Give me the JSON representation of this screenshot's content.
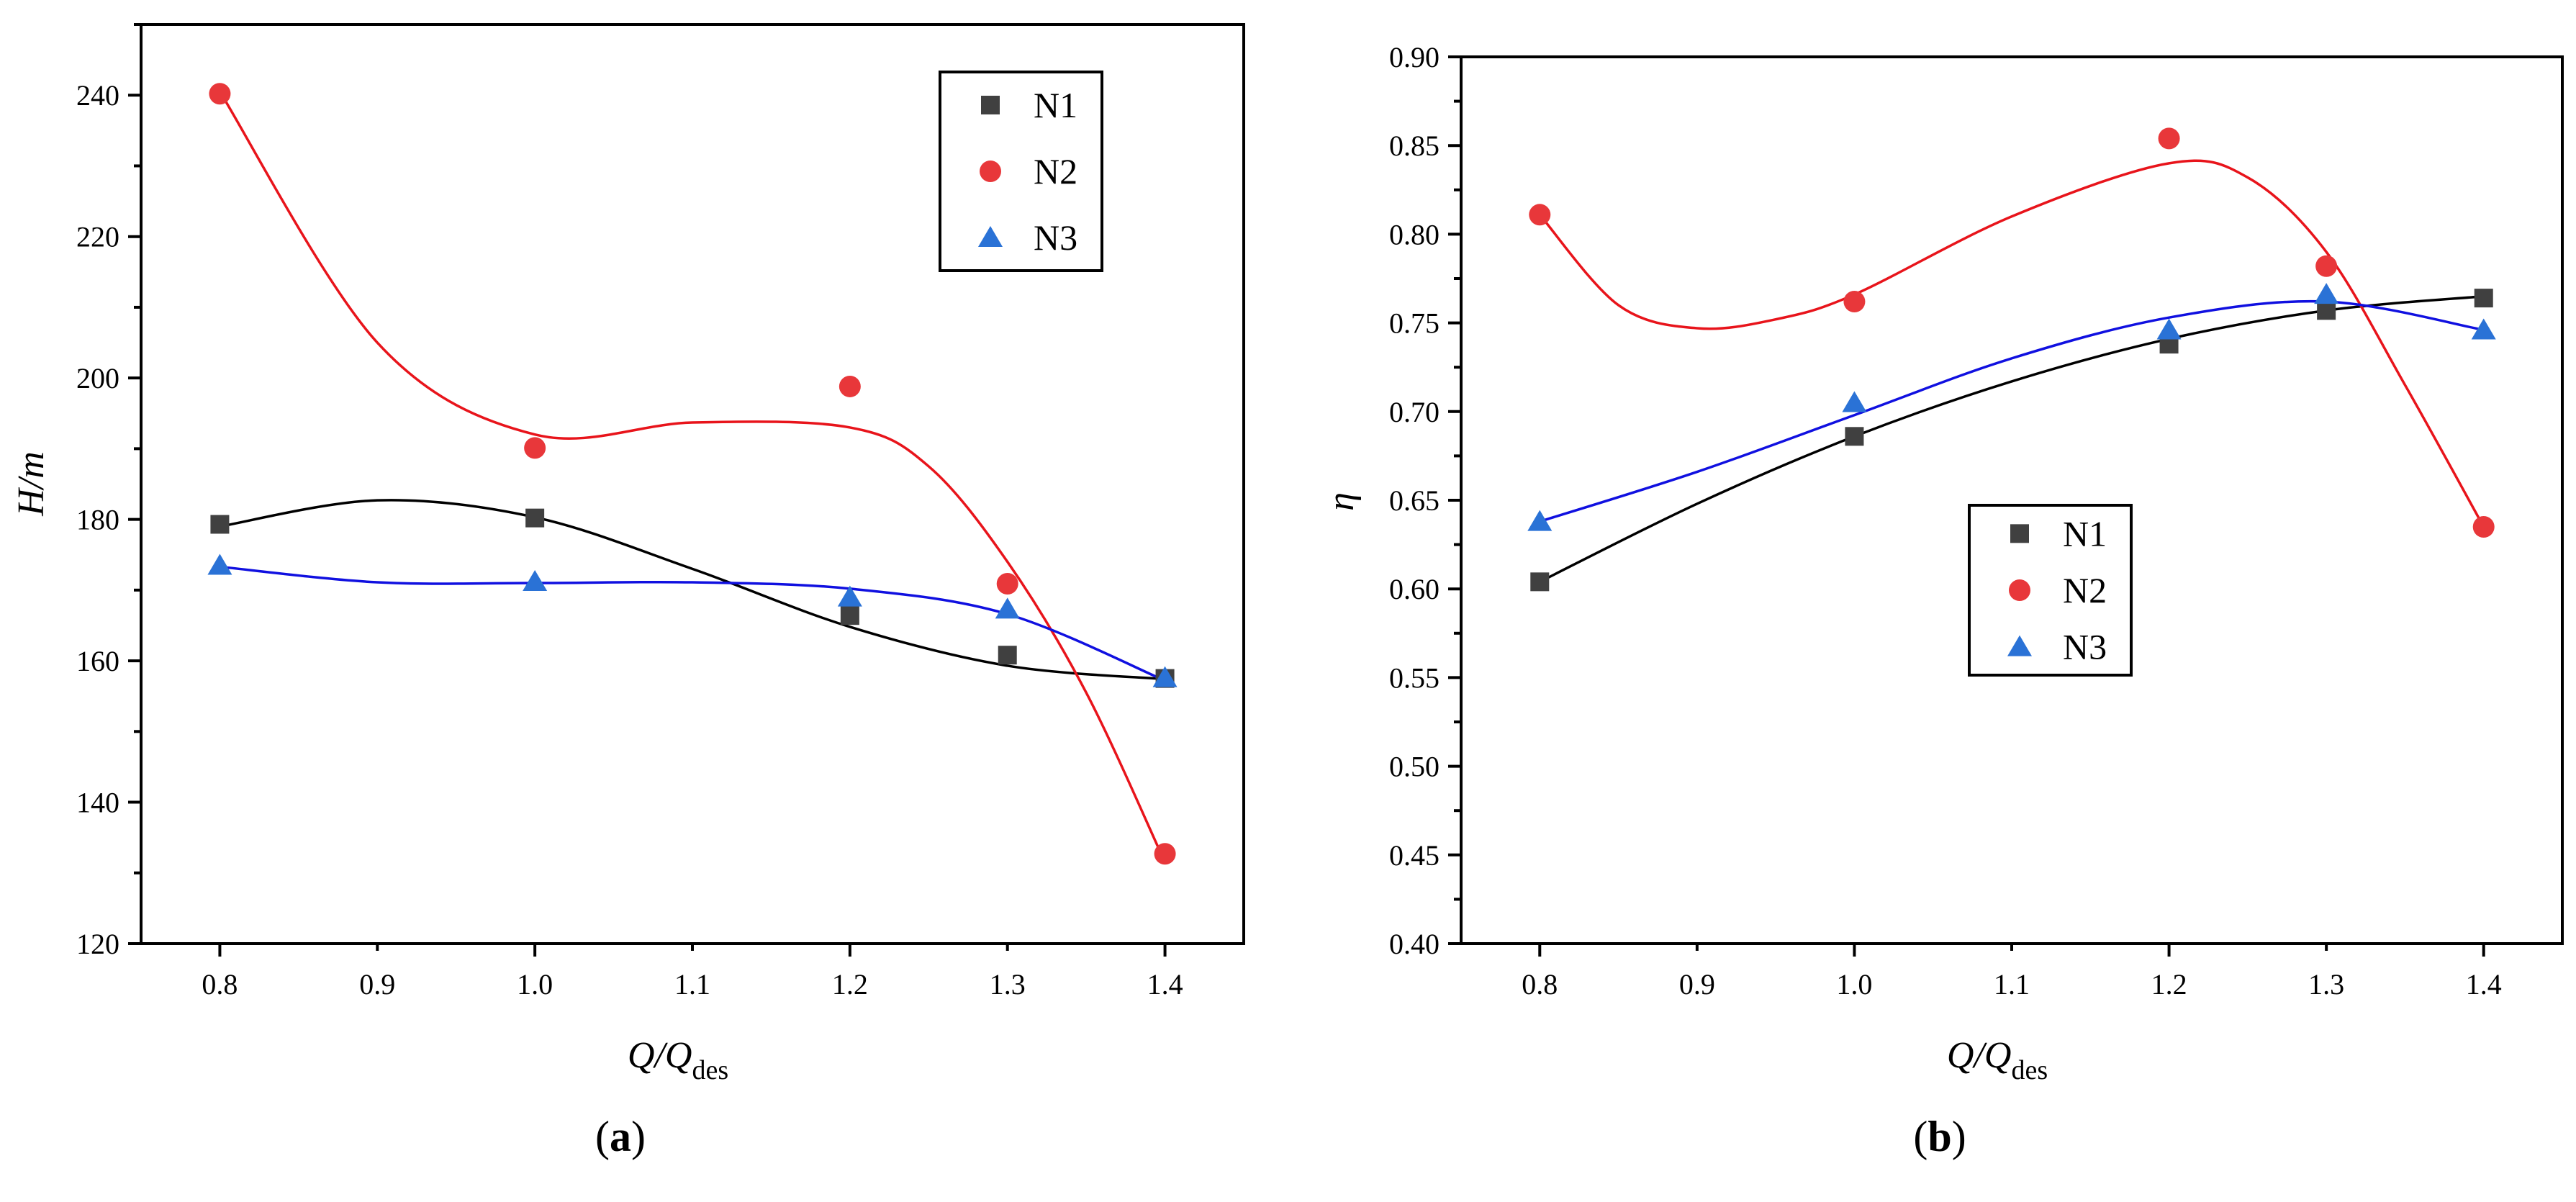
{
  "chart_data": [
    {
      "id": "a",
      "panel_label": {
        "prefix": "(",
        "letter": "a",
        "suffix": ")"
      },
      "type": "scatter",
      "fit": "smooth-curve",
      "xlabel": {
        "main": "Q/Q",
        "sub": "des"
      },
      "ylabel": "H/m",
      "xlim": [
        0.75,
        1.45
      ],
      "ylim": [
        120,
        250
      ],
      "xticks": [
        {
          "value": 0.8,
          "label": "0.8"
        },
        {
          "value": 0.9,
          "label": "0.9"
        },
        {
          "value": 1.0,
          "label": "1.0"
        },
        {
          "value": 1.1,
          "label": "1.1"
        },
        {
          "value": 1.2,
          "label": "1.2"
        },
        {
          "value": 1.3,
          "label": "1.3"
        },
        {
          "value": 1.4,
          "label": "1.4"
        }
      ],
      "yticks": [
        {
          "value": 120,
          "label": "120"
        },
        {
          "value": 140,
          "label": "140"
        },
        {
          "value": 160,
          "label": "160"
        },
        {
          "value": 180,
          "label": "180"
        },
        {
          "value": 200,
          "label": "200"
        },
        {
          "value": 220,
          "label": "220"
        },
        {
          "value": 240,
          "label": "240"
        }
      ],
      "legend_position": "top-right",
      "x": [
        0.8,
        1.0,
        1.2,
        1.3,
        1.4
      ],
      "series": [
        {
          "name": "N1",
          "marker": "square",
          "marker_color": "#404040",
          "line_color": "#000000",
          "values": [
            179.3,
            180.2,
            166.4,
            160.8,
            157.5
          ],
          "fit_x": [
            0.8,
            0.9,
            1.0,
            1.1,
            1.2,
            1.3,
            1.4
          ],
          "fit_y": [
            179.0,
            182.7,
            180.3,
            173.0,
            164.8,
            159.3,
            157.4
          ]
        },
        {
          "name": "N2",
          "marker": "circle",
          "marker_color": "#e8373a",
          "line_color": "#e8141b",
          "values": [
            240.2,
            190.1,
            198.8,
            170.9,
            132.7
          ],
          "fit_x": [
            0.8,
            0.9,
            1.0,
            1.1,
            1.2,
            1.25,
            1.3,
            1.35,
            1.4
          ],
          "fit_y": [
            240.5,
            205.0,
            192.0,
            193.7,
            193.0,
            187.5,
            174.0,
            155.5,
            131.5
          ]
        },
        {
          "name": "N3",
          "marker": "triangle",
          "marker_color": "#2a72d6",
          "line_color": "#1010e0",
          "values": [
            173.5,
            171.2,
            169.0,
            167.3,
            157.6
          ],
          "fit_x": [
            0.8,
            0.9,
            1.0,
            1.1,
            1.2,
            1.3,
            1.4
          ],
          "fit_y": [
            173.3,
            171.1,
            171.0,
            171.1,
            170.2,
            166.6,
            157.2
          ]
        }
      ]
    },
    {
      "id": "b",
      "panel_label": {
        "prefix": "(",
        "letter": "b",
        "suffix": ")"
      },
      "type": "scatter",
      "fit": "smooth-curve",
      "xlabel": {
        "main": "Q/Q",
        "sub": "des"
      },
      "ylabel": "η",
      "xlim": [
        0.75,
        1.45
      ],
      "ylim": [
        0.4,
        0.9
      ],
      "xticks": [
        {
          "value": 0.8,
          "label": "0.8"
        },
        {
          "value": 0.9,
          "label": "0.9"
        },
        {
          "value": 1.0,
          "label": "1.0"
        },
        {
          "value": 1.1,
          "label": "1.1"
        },
        {
          "value": 1.2,
          "label": "1.2"
        },
        {
          "value": 1.3,
          "label": "1.3"
        },
        {
          "value": 1.4,
          "label": "1.4"
        }
      ],
      "yticks": [
        {
          "value": 0.4,
          "label": "0.40"
        },
        {
          "value": 0.45,
          "label": "0.45"
        },
        {
          "value": 0.5,
          "label": "0.50"
        },
        {
          "value": 0.55,
          "label": "0.55"
        },
        {
          "value": 0.6,
          "label": "0.60"
        },
        {
          "value": 0.65,
          "label": "0.65"
        },
        {
          "value": 0.7,
          "label": "0.70"
        },
        {
          "value": 0.75,
          "label": "0.75"
        },
        {
          "value": 0.8,
          "label": "0.80"
        },
        {
          "value": 0.85,
          "label": "0.85"
        },
        {
          "value": 0.9,
          "label": "0.90"
        }
      ],
      "legend_position": "center",
      "x": [
        0.8,
        1.0,
        1.2,
        1.3,
        1.4
      ],
      "series": [
        {
          "name": "N1",
          "marker": "square",
          "marker_color": "#404040",
          "line_color": "#000000",
          "values": [
            0.604,
            0.686,
            0.738,
            0.757,
            0.764
          ],
          "fit_x": [
            0.8,
            0.9,
            1.0,
            1.1,
            1.2,
            1.3,
            1.4
          ],
          "fit_y": [
            0.604,
            0.648,
            0.686,
            0.717,
            0.741,
            0.757,
            0.765
          ]
        },
        {
          "name": "N2",
          "marker": "circle",
          "marker_color": "#e8373a",
          "line_color": "#e8141b",
          "values": [
            0.811,
            0.762,
            0.854,
            0.782,
            0.635
          ],
          "fit_x": [
            0.8,
            0.85,
            0.9,
            0.95,
            1.0,
            1.1,
            1.2,
            1.25,
            1.3,
            1.35,
            1.4
          ],
          "fit_y": [
            0.811,
            0.76,
            0.747,
            0.752,
            0.766,
            0.81,
            0.84,
            0.832,
            0.79,
            0.715,
            0.635
          ]
        },
        {
          "name": "N3",
          "marker": "triangle",
          "marker_color": "#2a72d6",
          "line_color": "#1010e0",
          "values": [
            0.638,
            0.705,
            0.746,
            0.766,
            0.746
          ],
          "fit_x": [
            0.8,
            0.9,
            1.0,
            1.1,
            1.2,
            1.3,
            1.4
          ],
          "fit_y": [
            0.638,
            0.666,
            0.698,
            0.73,
            0.753,
            0.762,
            0.746
          ]
        }
      ]
    }
  ]
}
